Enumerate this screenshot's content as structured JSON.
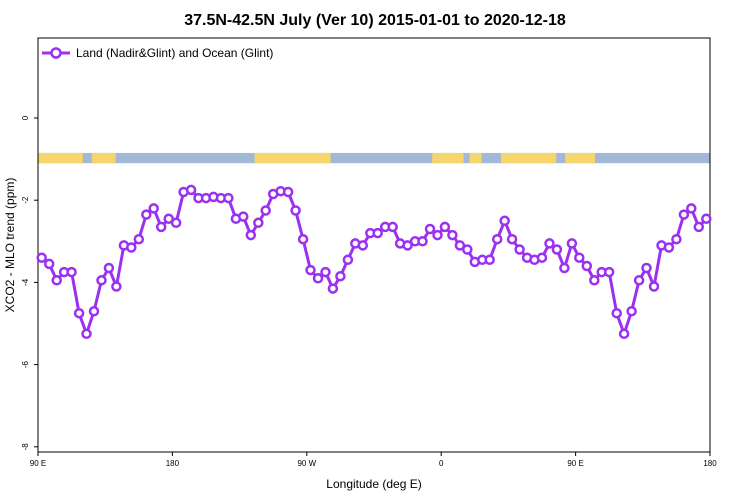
{
  "chart_data": {
    "type": "line",
    "title": "37.5N-42.5N July (Ver 10)   2015-01-01 to 2020-12-18",
    "xlabel": "Longitude (deg E)",
    "ylabel": "XCO2 - MLO trend (ppm)",
    "xlim": [
      90,
      540
    ],
    "ylim": [
      -8,
      2
    ],
    "x_ticks": [
      {
        "value": 90,
        "label": "90 E"
      },
      {
        "value": 180,
        "label": "180"
      },
      {
        "value": 270,
        "label": "90 W"
      },
      {
        "value": 360,
        "label": "0"
      },
      {
        "value": 450,
        "label": "90 E"
      },
      {
        "value": 540,
        "label": "180"
      }
    ],
    "y_ticks": [
      {
        "value": 0,
        "label": "0"
      },
      {
        "value": -2,
        "label": "-2"
      },
      {
        "value": -4,
        "label": "-4"
      },
      {
        "value": -6,
        "label": "-6"
      },
      {
        "value": -8,
        "label": "-8"
      }
    ],
    "legend_position": "top-left",
    "grid": false,
    "series": [
      {
        "name": "Land (Nadir&Glint) and Ocean (Glint)",
        "color": "#9B30F0",
        "x": [
          92.5,
          97.5,
          102.5,
          107.5,
          112.5,
          117.5,
          122.5,
          127.5,
          132.5,
          137.5,
          142.5,
          147.5,
          152.5,
          157.5,
          162.5,
          167.5,
          172.5,
          177.5,
          182.5,
          187.5,
          192.5,
          197.5,
          202.5,
          207.5,
          212.5,
          217.5,
          222.5,
          227.5,
          232.5,
          237.5,
          242.5,
          247.5,
          252.5,
          257.5,
          262.5,
          267.5,
          272.5,
          277.5,
          282.5,
          287.5,
          292.5,
          297.5,
          302.5,
          307.5,
          312.5,
          317.5,
          322.5,
          327.5,
          332.5,
          337.5,
          342.5,
          347.5,
          352.5,
          357.5,
          362.5,
          367.5,
          372.5,
          377.5,
          382.5,
          387.5,
          392.5,
          397.5,
          402.5,
          407.5,
          412.5,
          417.5,
          422.5,
          427.5,
          432.5,
          437.5,
          442.5,
          447.5,
          452.5,
          457.5,
          462.5,
          467.5,
          472.5,
          477.5,
          482.5,
          487.5,
          492.5,
          497.5,
          502.5,
          507.5,
          512.5,
          517.5,
          522.5,
          527.5,
          532.5,
          537.5
        ],
        "y": [
          -3.4,
          -3.55,
          -3.95,
          -3.75,
          -3.75,
          -4.75,
          -5.25,
          -4.7,
          -3.95,
          -3.65,
          -4.1,
          -3.1,
          -3.15,
          -2.95,
          -2.35,
          -2.2,
          -2.65,
          -2.45,
          -2.55,
          -1.8,
          -1.75,
          -1.95,
          -1.95,
          -1.92,
          -1.95,
          -1.95,
          -2.45,
          -2.4,
          -2.85,
          -2.55,
          -2.25,
          -1.85,
          -1.78,
          -1.8,
          -2.25,
          -2.95,
          -3.7,
          -3.9,
          -3.75,
          -4.15,
          -3.85,
          -3.45,
          -3.05,
          -3.1,
          -2.8,
          -2.8,
          -2.65,
          -2.65,
          -3.05,
          -3.1,
          -3.0,
          -3.0,
          -2.7,
          -2.85,
          -2.65,
          -2.85,
          -3.1,
          -3.2,
          -3.5,
          -3.45,
          -3.45,
          -2.95,
          -2.5,
          -2.95,
          -3.2,
          -3.4,
          -3.45,
          -3.4,
          -3.05,
          -3.2,
          -3.65,
          -3.05,
          -3.4,
          -3.6,
          -3.95,
          -3.75,
          -3.75,
          -4.75,
          -5.25,
          -4.7,
          -3.95,
          -3.65,
          -4.1,
          -3.1,
          -3.15,
          -2.95,
          -2.35,
          -2.2,
          -2.65,
          -2.45
        ]
      }
    ],
    "surface_band": {
      "y_range": [
        -1.1,
        -0.85
      ],
      "ocean_color": "#A2B8D8",
      "land_color": "#F6D56C",
      "land_ranges": [
        [
          90,
          120
        ],
        [
          126,
          142
        ],
        [
          235,
          286
        ],
        [
          354,
          375
        ],
        [
          379,
          387
        ],
        [
          400,
          437
        ],
        [
          443,
          463
        ]
      ]
    }
  }
}
